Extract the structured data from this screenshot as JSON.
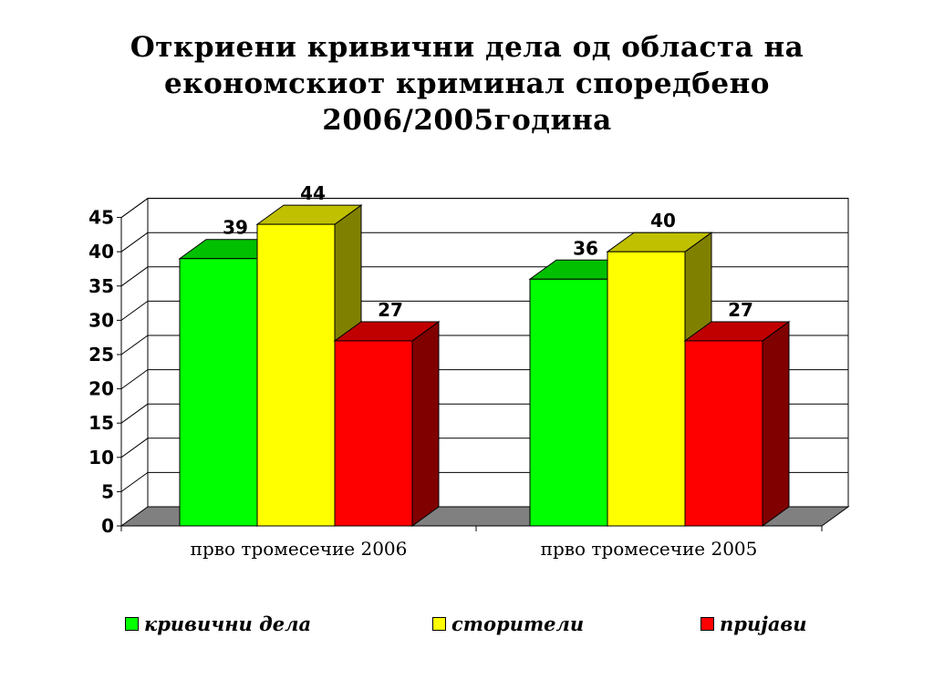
{
  "title_lines": [
    "Откриени кривични дела од областа на",
    "економскиот криминал споредбено",
    "2006/2005година"
  ],
  "colors": {
    "series_front": [
      "#00ff00",
      "#ffff00",
      "#ff0000"
    ],
    "series_top": [
      "#00c000",
      "#c0c000",
      "#c00000"
    ],
    "series_side": [
      "#008000",
      "#808000",
      "#800000"
    ],
    "floor": "#808080",
    "grid": "#000000"
  },
  "chart_data": {
    "type": "bar",
    "categories": [
      "прво тромесечие 2006",
      "прво тромесечие 2005"
    ],
    "series": [
      {
        "name": "кривични дела",
        "values": [
          39,
          36
        ]
      },
      {
        "name": "сторители",
        "values": [
          44,
          40
        ]
      },
      {
        "name": "пријави",
        "values": [
          27,
          27
        ]
      }
    ],
    "ylim": [
      0,
      45
    ],
    "yticks": [
      "0",
      "5",
      "10",
      "15",
      "20",
      "25",
      "30",
      "35",
      "40",
      "45"
    ],
    "data_labels": [
      [
        "39",
        "36"
      ],
      [
        "44",
        "40"
      ],
      [
        "27",
        "27"
      ]
    ],
    "grid": true,
    "legend_position": "bottom",
    "three_d": true
  }
}
